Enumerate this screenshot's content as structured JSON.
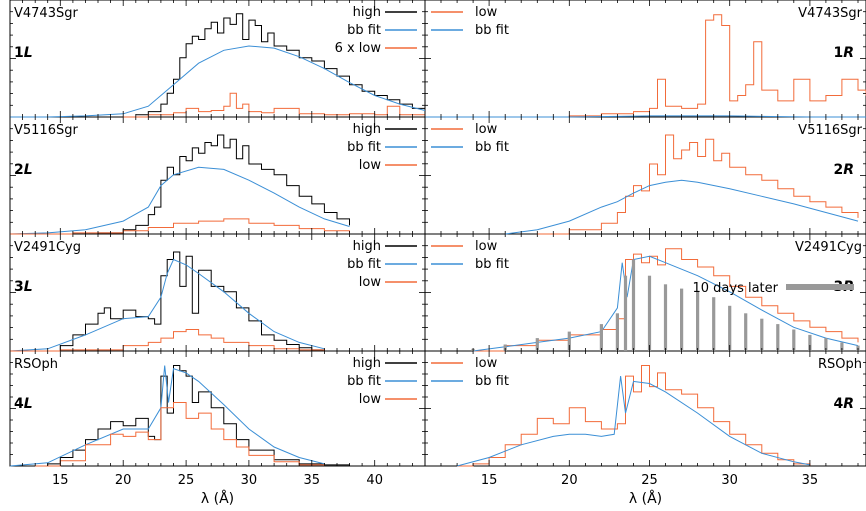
{
  "chart_data": [
    {
      "type": "line",
      "panel": "1L",
      "star": "V4743Sgr",
      "label": "1L",
      "legend": [
        "high",
        "bb fit",
        "6 x low"
      ],
      "xlim": [
        11,
        44
      ],
      "series": [
        {
          "name": "high",
          "color": "#000000",
          "x": [
            21,
            22,
            23,
            23.5,
            24,
            24.5,
            25,
            25.5,
            26,
            26.5,
            27,
            27.5,
            28,
            28.5,
            29,
            29.5,
            30,
            30.5,
            31,
            31.5,
            32,
            33,
            34,
            35,
            36,
            37,
            38,
            39,
            40,
            41,
            42,
            43,
            44
          ],
          "y": [
            0.02,
            0.05,
            0.12,
            0.22,
            0.35,
            0.55,
            0.68,
            0.75,
            0.72,
            0.82,
            0.88,
            0.78,
            0.92,
            0.86,
            0.96,
            0.72,
            0.9,
            0.85,
            0.7,
            0.78,
            0.66,
            0.62,
            0.55,
            0.52,
            0.45,
            0.38,
            0.3,
            0.24,
            0.2,
            0.16,
            0.12,
            0.08,
            0.06
          ]
        },
        {
          "name": "bb fit",
          "color": "#3b8fd6",
          "x": [
            11,
            14,
            17,
            20,
            22,
            24,
            26,
            28,
            30,
            32,
            34,
            36,
            38,
            40,
            42,
            44
          ],
          "y": [
            0,
            0,
            0.01,
            0.03,
            0.1,
            0.3,
            0.5,
            0.62,
            0.66,
            0.64,
            0.56,
            0.45,
            0.32,
            0.2,
            0.12,
            0.06
          ]
        },
        {
          "name": "6 x low",
          "color": "#f26b3a",
          "x": [
            20,
            22,
            24,
            25,
            26,
            27,
            28,
            28.5,
            29,
            29.5,
            30,
            31,
            32,
            34,
            36,
            38,
            40,
            41,
            42,
            44
          ],
          "y": [
            0,
            0.02,
            0.04,
            0.08,
            0.05,
            0.06,
            0.1,
            0.22,
            0.08,
            0.12,
            0.05,
            0.04,
            0.08,
            0.03,
            0.02,
            0.03,
            0.02,
            0.1,
            0.02,
            0.01
          ]
        }
      ]
    },
    {
      "type": "line",
      "panel": "1R",
      "star": "V4743Sgr",
      "label": "1R",
      "legend": [
        "low",
        "bb fit"
      ],
      "xlim": [
        11,
        38.5
      ],
      "series": [
        {
          "name": "low",
          "color": "#f26b3a",
          "x": [
            11,
            20,
            22,
            24,
            25,
            25.5,
            26,
            27,
            28,
            28.5,
            29,
            29.5,
            30,
            30.5,
            31,
            31.5,
            32,
            33,
            34,
            35,
            36,
            37,
            38,
            38.5
          ],
          "y": [
            0,
            0.01,
            0.03,
            0.05,
            0.08,
            0.35,
            0.1,
            0.08,
            0.12,
            0.9,
            0.95,
            0.85,
            0.15,
            0.2,
            0.3,
            0.7,
            0.25,
            0.15,
            0.35,
            0.15,
            0.2,
            0.35,
            0.25,
            0.2
          ]
        },
        {
          "name": "bb fit",
          "color": "#3b8fd6",
          "x": [
            11,
            20,
            25,
            30,
            35,
            38.5
          ],
          "y": [
            0,
            0,
            0.01,
            0.01,
            0,
            0
          ]
        }
      ]
    },
    {
      "type": "line",
      "panel": "2L",
      "star": "V5116Sgr",
      "label": "2L",
      "legend": [
        "high",
        "bb fit",
        "low"
      ],
      "xlim": [
        11,
        44
      ],
      "series": [
        {
          "name": "high",
          "color": "#000000",
          "x": [
            18,
            20,
            21,
            22,
            22.5,
            23,
            23.5,
            24,
            24.5,
            25,
            25.5,
            26,
            26.5,
            27,
            27.5,
            28,
            28.5,
            29,
            29.5,
            30,
            31,
            32,
            33,
            34,
            35,
            36,
            37,
            38
          ],
          "y": [
            0.01,
            0.04,
            0.08,
            0.18,
            0.25,
            0.5,
            0.62,
            0.55,
            0.72,
            0.68,
            0.8,
            0.75,
            0.85,
            0.82,
            0.92,
            0.8,
            0.88,
            0.7,
            0.82,
            0.65,
            0.6,
            0.55,
            0.45,
            0.35,
            0.28,
            0.2,
            0.14,
            0.08
          ]
        },
        {
          "name": "bb fit",
          "color": "#3b8fd6",
          "x": [
            11,
            14,
            17,
            20,
            22,
            23,
            24,
            26,
            28,
            30,
            32,
            34,
            36,
            38
          ],
          "y": [
            0,
            0.01,
            0.04,
            0.12,
            0.25,
            0.45,
            0.55,
            0.62,
            0.6,
            0.5,
            0.38,
            0.25,
            0.14,
            0.07
          ]
        },
        {
          "name": "low",
          "color": "#f26b3a",
          "x": [
            11,
            16,
            20,
            22,
            24,
            26,
            28,
            30,
            32,
            34,
            36,
            38
          ],
          "y": [
            0,
            0.01,
            0.03,
            0.06,
            0.1,
            0.12,
            0.14,
            0.1,
            0.08,
            0.05,
            0.03,
            0.01
          ]
        }
      ]
    },
    {
      "type": "line",
      "panel": "2R",
      "star": "V5116Sgr",
      "label": "2R",
      "legend": [
        "low",
        "bb fit"
      ],
      "xlim": [
        11,
        38.5
      ],
      "series": [
        {
          "name": "low",
          "color": "#f26b3a",
          "x": [
            18,
            20,
            22,
            23,
            23.5,
            24,
            24.5,
            25,
            25.5,
            26,
            26.5,
            27,
            27.5,
            28,
            28.5,
            29,
            29.5,
            30,
            31,
            32,
            33,
            34,
            35,
            36,
            37,
            38
          ],
          "y": [
            0,
            0.04,
            0.1,
            0.2,
            0.35,
            0.45,
            0.4,
            0.65,
            0.55,
            0.92,
            0.7,
            0.78,
            0.85,
            0.72,
            0.88,
            0.68,
            0.75,
            0.62,
            0.55,
            0.5,
            0.42,
            0.35,
            0.3,
            0.25,
            0.2,
            0.15
          ]
        },
        {
          "name": "bb fit",
          "color": "#3b8fd6",
          "x": [
            16,
            18,
            20,
            22,
            23,
            24,
            25,
            26,
            27,
            28,
            30,
            32,
            34,
            36,
            38
          ],
          "y": [
            0,
            0.04,
            0.12,
            0.25,
            0.3,
            0.38,
            0.45,
            0.48,
            0.5,
            0.48,
            0.42,
            0.35,
            0.28,
            0.2,
            0.12
          ]
        }
      ]
    },
    {
      "type": "line",
      "panel": "3L",
      "star": "V2491Cyg",
      "label": "3L",
      "legend": [
        "high",
        "bb fit",
        "low"
      ],
      "xlim": [
        11,
        44
      ],
      "series": [
        {
          "name": "high",
          "color": "#000000",
          "x": [
            14,
            15,
            16,
            17,
            18,
            18.5,
            19,
            20,
            21,
            22,
            22.5,
            23,
            23.5,
            24,
            24.5,
            25,
            25.5,
            26,
            27,
            28,
            29,
            30,
            31,
            32,
            33,
            34,
            35,
            36
          ],
          "y": [
            0,
            0.05,
            0.15,
            0.25,
            0.35,
            0.4,
            0.3,
            0.38,
            0.32,
            0.3,
            0.25,
            0.7,
            0.85,
            0.92,
            0.6,
            0.88,
            0.35,
            0.75,
            0.6,
            0.55,
            0.4,
            0.28,
            0.15,
            0.1,
            0.06,
            0.03,
            0.01,
            0
          ]
        },
        {
          "name": "bb fit",
          "color": "#3b8fd6",
          "x": [
            11,
            14,
            17,
            20,
            22,
            23,
            23.5,
            24,
            25,
            26,
            28,
            30,
            32,
            34,
            36
          ],
          "y": [
            0,
            0.02,
            0.15,
            0.3,
            0.32,
            0.5,
            0.72,
            0.85,
            0.8,
            0.72,
            0.55,
            0.35,
            0.18,
            0.08,
            0.02
          ]
        },
        {
          "name": "low",
          "color": "#f26b3a",
          "x": [
            11,
            15,
            20,
            22,
            23,
            24,
            25,
            26,
            27,
            28,
            30,
            32,
            34,
            36
          ],
          "y": [
            0,
            0.01,
            0.05,
            0.08,
            0.12,
            0.18,
            0.2,
            0.15,
            0.12,
            0.08,
            0.05,
            0.02,
            0.01,
            0
          ]
        }
      ]
    },
    {
      "type": "area",
      "panel": "3R",
      "star": "V2491Cyg",
      "label": "3R",
      "legend": [
        "low",
        "bb fit",
        "10 days later"
      ],
      "xlim": [
        11,
        38.5
      ],
      "series": [
        {
          "name": "low",
          "color": "#f26b3a",
          "x": [
            14,
            16,
            18,
            20,
            22,
            23,
            23.5,
            24,
            24.5,
            25,
            25.5,
            26,
            27,
            28,
            29,
            30,
            31,
            32,
            33,
            34,
            35,
            36,
            37,
            38
          ],
          "y": [
            0,
            0.05,
            0.1,
            0.15,
            0.2,
            0.3,
            0.85,
            0.9,
            0.82,
            0.88,
            0.8,
            0.95,
            0.85,
            0.78,
            0.7,
            0.6,
            0.5,
            0.42,
            0.35,
            0.28,
            0.22,
            0.18,
            0.12,
            0.08
          ]
        },
        {
          "name": "bb fit",
          "color": "#3b8fd6",
          "x": [
            14,
            16,
            18,
            20,
            22,
            23,
            23.3,
            23.6,
            24,
            25,
            26,
            28,
            30,
            32,
            34,
            36,
            38
          ],
          "y": [
            0,
            0.04,
            0.08,
            0.12,
            0.18,
            0.4,
            0.82,
            0.5,
            0.85,
            0.88,
            0.82,
            0.7,
            0.55,
            0.38,
            0.22,
            0.12,
            0.05
          ]
        },
        {
          "name": "10 days later",
          "color": "#999999",
          "x": [
            14,
            16,
            18,
            20,
            22,
            23,
            23.5,
            24,
            25,
            26,
            27,
            28,
            29,
            30,
            31,
            32,
            33,
            34,
            35,
            36,
            37,
            38
          ],
          "y": [
            0.02,
            0.06,
            0.12,
            0.18,
            0.25,
            0.35,
            0.7,
            0.85,
            0.7,
            0.62,
            0.58,
            0.55,
            0.5,
            0.42,
            0.35,
            0.3,
            0.25,
            0.2,
            0.15,
            0.12,
            0.08,
            0.05
          ]
        }
      ]
    },
    {
      "type": "line",
      "panel": "4L",
      "star": "RSOph",
      "label": "4L",
      "legend": [
        "high",
        "bb fit",
        "low"
      ],
      "xlim": [
        11,
        44
      ],
      "series": [
        {
          "name": "high",
          "color": "#000000",
          "x": [
            13,
            14,
            15,
            16,
            17,
            18,
            19,
            20,
            21,
            22,
            22.5,
            23,
            23.5,
            24,
            24.5,
            25,
            25.5,
            26,
            27,
            28,
            29,
            30,
            32,
            34,
            36,
            38
          ],
          "y": [
            0,
            0.02,
            0.08,
            0.15,
            0.25,
            0.35,
            0.42,
            0.38,
            0.45,
            0.28,
            0.25,
            0.85,
            0.5,
            0.95,
            0.9,
            0.85,
            0.6,
            0.7,
            0.55,
            0.4,
            0.25,
            0.15,
            0.06,
            0.02,
            0.01,
            0
          ]
        },
        {
          "name": "bb fit",
          "color": "#3b8fd6",
          "x": [
            11,
            14,
            17,
            20,
            22,
            23,
            23.3,
            23.6,
            24,
            25,
            26,
            28,
            30,
            32,
            34,
            36
          ],
          "y": [
            0,
            0.03,
            0.2,
            0.35,
            0.35,
            0.55,
            0.95,
            0.6,
            0.92,
            0.88,
            0.8,
            0.58,
            0.35,
            0.18,
            0.08,
            0.02
          ]
        },
        {
          "name": "low",
          "color": "#f26b3a",
          "x": [
            13,
            15,
            17,
            19,
            20,
            21,
            22,
            23,
            24,
            25,
            26,
            27,
            28,
            29,
            30,
            32,
            34,
            36
          ],
          "y": [
            0,
            0.05,
            0.2,
            0.3,
            0.28,
            0.32,
            0.25,
            0.55,
            0.6,
            0.45,
            0.5,
            0.35,
            0.25,
            0.18,
            0.1,
            0.04,
            0.01,
            0
          ]
        }
      ]
    },
    {
      "type": "line",
      "panel": "4R",
      "star": "RSOph",
      "label": "4R",
      "legend": [
        "low",
        "bb fit"
      ],
      "xlim": [
        11,
        38.5
      ],
      "series": [
        {
          "name": "low",
          "color": "#f26b3a",
          "x": [
            13,
            14,
            15,
            16,
            17,
            18,
            19,
            20,
            21,
            22,
            23,
            23.5,
            24,
            24.5,
            25,
            25.5,
            26,
            27,
            28,
            29,
            30,
            31,
            32,
            33,
            34,
            35
          ],
          "y": [
            0,
            0.02,
            0.08,
            0.2,
            0.3,
            0.45,
            0.4,
            0.55,
            0.42,
            0.35,
            0.4,
            0.85,
            0.7,
            0.95,
            0.75,
            0.88,
            0.72,
            0.68,
            0.55,
            0.42,
            0.3,
            0.2,
            0.12,
            0.06,
            0.02,
            0
          ]
        },
        {
          "name": "bb fit",
          "color": "#3b8fd6",
          "x": [
            13,
            15,
            17,
            19,
            20,
            21,
            22,
            22.8,
            23.2,
            23.5,
            24,
            25,
            26,
            28,
            30,
            32,
            34,
            35
          ],
          "y": [
            0,
            0.08,
            0.2,
            0.28,
            0.3,
            0.3,
            0.28,
            0.3,
            0.85,
            0.5,
            0.8,
            0.78,
            0.7,
            0.5,
            0.28,
            0.12,
            0.04,
            0.01
          ]
        }
      ]
    }
  ],
  "axes": {
    "left": {
      "xlabel": "λ (Å)",
      "ticks": [
        15,
        20,
        25,
        30,
        35,
        40
      ]
    },
    "right": {
      "xlabel": "λ (Å)",
      "ticks": [
        15,
        20,
        25,
        30,
        35
      ]
    }
  },
  "colors": {
    "high": "#000000",
    "bb": "#3b8fd6",
    "low": "#f26b3a",
    "later": "#999999"
  }
}
